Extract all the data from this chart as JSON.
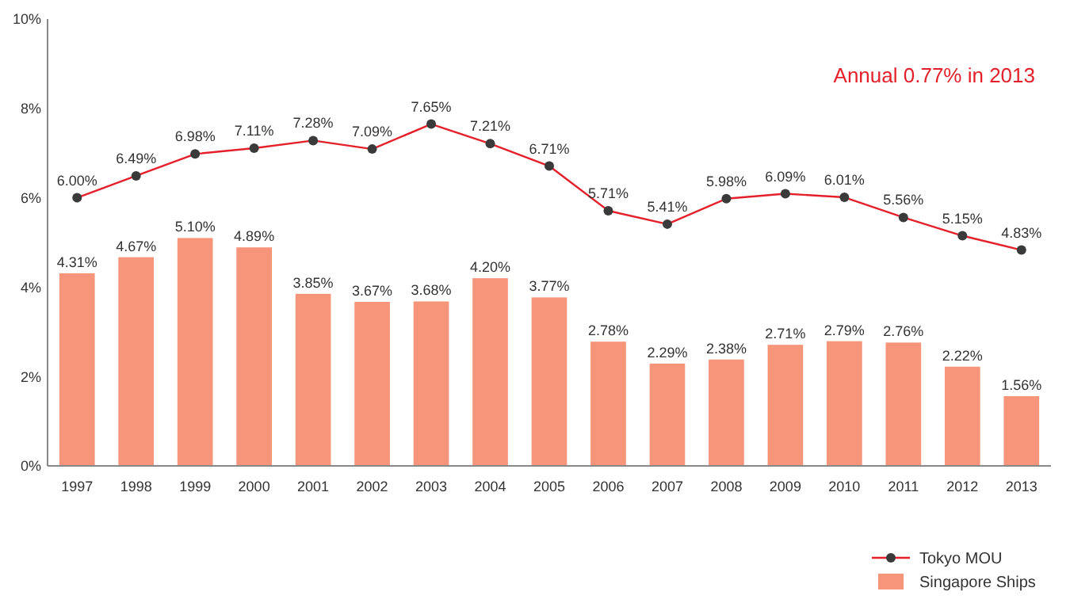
{
  "chart_data": {
    "type": "bar",
    "categories": [
      "1997",
      "1998",
      "1999",
      "2000",
      "2001",
      "2002",
      "2003",
      "2004",
      "2005",
      "2006",
      "2007",
      "2008",
      "2009",
      "2010",
      "2011",
      "2012",
      "2013"
    ],
    "series": [
      {
        "name": "Tokyo MOU",
        "type": "line",
        "color": "#e4202a",
        "marker": "circle",
        "values": [
          6.0,
          6.49,
          6.98,
          7.11,
          7.28,
          7.09,
          7.65,
          7.21,
          6.71,
          5.71,
          5.41,
          5.98,
          6.09,
          6.01,
          5.56,
          5.15,
          4.83
        ],
        "value_labels": [
          "6.00%",
          "6.49%",
          "6.98%",
          "7.11%",
          "7.28%",
          "7.09%",
          "7.65%",
          "7.21%",
          "6.71%",
          "5.71%",
          "5.41%",
          "5.98%",
          "6.09%",
          "6.01%",
          "5.56%",
          "5.15%",
          "4.83%"
        ]
      },
      {
        "name": "Singapore Ships",
        "color": "#f7957a",
        "values": [
          4.31,
          4.67,
          5.1,
          4.89,
          3.85,
          3.67,
          3.68,
          4.2,
          3.77,
          2.78,
          2.29,
          2.38,
          2.71,
          2.79,
          2.76,
          2.22,
          1.56
        ],
        "value_labels": [
          "4.31%",
          "4.67%",
          "5.10%",
          "4.89%",
          "3.85%",
          "3.67%",
          "3.68%",
          "4.20%",
          "3.77%",
          "2.78%",
          "2.29%",
          "2.38%",
          "2.71%",
          "2.79%",
          "2.76%",
          "2.22%",
          "1.56%"
        ]
      }
    ],
    "ylim": [
      0,
      10
    ],
    "yticks": [
      {
        "value": 0,
        "label": "0%"
      },
      {
        "value": 2,
        "label": "2%"
      },
      {
        "value": 4,
        "label": "4%"
      },
      {
        "value": 6,
        "label": "6%"
      },
      {
        "value": 8,
        "label": "8%"
      },
      {
        "value": 10,
        "label": "10%"
      }
    ],
    "grid": false,
    "legend": "bottom right",
    "annotations": [
      "Annual 0.77% in 2013"
    ]
  }
}
